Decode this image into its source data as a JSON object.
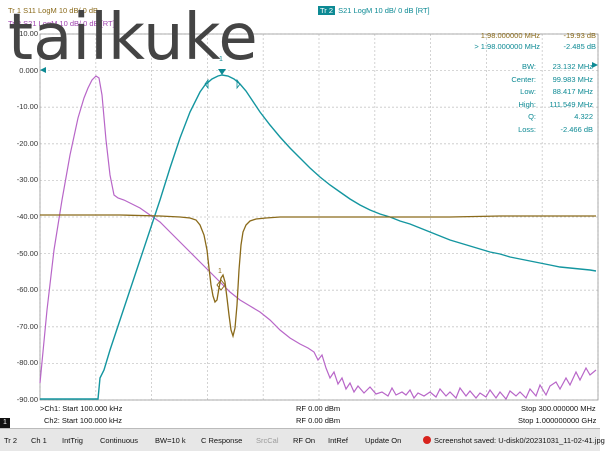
{
  "header": {
    "tr1": "Tr 1   S11  LogM  10 dB/  0 dB",
    "tr3": "Tr 3   S21  LogM  10 dB/  0 dB  [RT]",
    "tr2_tag": "Tr 2",
    "tr2": "S21  LogM  10 dB/  0 dB  [RT]"
  },
  "watermark": "tailkuke",
  "y_axis": [
    "10.00",
    "0.000",
    "-10.00",
    "-20.00",
    "-30.00",
    "-40.00",
    "-50.00",
    "-60.00",
    "-70.00",
    "-80.00",
    "-90.00"
  ],
  "markers": [
    {
      "label": "1:98.000000 MHz",
      "value": "-19.93 dB",
      "color": "#8a6a1a"
    },
    {
      "label": "> 1:98.000000 MHz",
      "value": "-2.485 dB",
      "color": "#0d8a94"
    }
  ],
  "stats": [
    {
      "label": "BW:",
      "value": "23.132 MHz"
    },
    {
      "label": "Center:",
      "value": "99.983 MHz"
    },
    {
      "label": "Low:",
      "value": "88.417 MHz"
    },
    {
      "label": "High:",
      "value": "111.549 MHz"
    },
    {
      "label": "Q:",
      "value": "4.322"
    },
    {
      "label": "Loss:",
      "value": "-2.466 dB"
    }
  ],
  "marker_flag_top": "1",
  "marker_flag_s11": "1",
  "channels": {
    "ch1_start": ">Ch1: Start  100.000 kHz",
    "ch1_rf": "RF 0.00 dBm",
    "ch1_stop": "Stop  300.000000 MHz",
    "ch2_start": "Ch2: Start  100.000 kHz",
    "ch2_rf": "RF 0.00 dBm",
    "ch2_stop": "Stop  1.000000000 GHz",
    "badge": "1"
  },
  "statusbar": {
    "tr": "Tr 2",
    "ch": "Ch 1",
    "trig": "IntTrig",
    "mode": "Continuous",
    "bw": "BW=10 k",
    "cal": "C Response",
    "srccal": "SrcCal",
    "rf": "RF On",
    "ref": "IntRef",
    "update": "Update On",
    "message": "Screenshot saved: U-disk0/20231031_11-02-41.jpg"
  },
  "colors": {
    "s11_trace": "#8a6a1a",
    "s21_trace": "#1496a0",
    "tr3_trace": "#b866c8",
    "grid": "#c8c8c8"
  }
}
